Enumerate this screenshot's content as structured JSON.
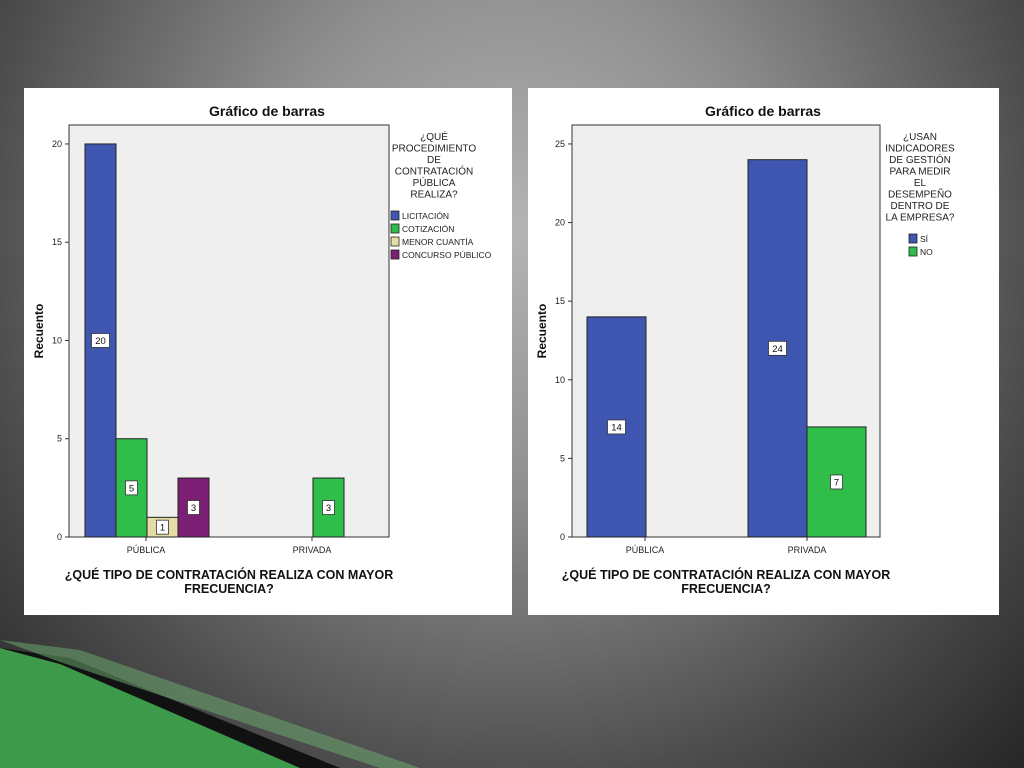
{
  "chart_data": [
    {
      "type": "bar",
      "title": "Gráfico de barras",
      "ylabel": "Recuento",
      "xlabel_lines": [
        "¿QUÉ TIPO DE CONTRATACIÓN REALIZA CON MAYOR",
        "FRECUENCIA?"
      ],
      "categories": [
        "PÚBLICA",
        "PRIVADA"
      ],
      "ylim": [
        0,
        20
      ],
      "yticks": [
        0,
        5,
        10,
        15,
        20
      ],
      "legend_title_lines": [
        "¿QUÉ",
        "PROCEDIMIENTO",
        "DE",
        "CONTRATACIÓN",
        "PÚBLICA",
        "REALIZA?"
      ],
      "legend_position": "right",
      "series": [
        {
          "name": "LICITACIÓN",
          "color": "#3f56b0",
          "values": [
            20,
            null
          ]
        },
        {
          "name": "COTIZACIÓN",
          "color": "#2fbe4a",
          "values": [
            5,
            3
          ]
        },
        {
          "name": "MENOR CUANTÍA",
          "color": "#e6dca6",
          "values": [
            1,
            null
          ]
        },
        {
          "name": "CONCURSO PÚBLICO",
          "color": "#7a1f74",
          "values": [
            3,
            null
          ]
        }
      ]
    },
    {
      "type": "bar",
      "title": "Gráfico de barras",
      "ylabel": "Recuento",
      "xlabel_lines": [
        "¿QUÉ TIPO DE CONTRATACIÓN REALIZA CON MAYOR",
        "FRECUENCIA?"
      ],
      "categories": [
        "PÚBLICA",
        "PRIVADA"
      ],
      "ylim": [
        0,
        25
      ],
      "yticks": [
        0,
        5,
        10,
        15,
        20,
        25
      ],
      "legend_title_lines": [
        "¿USAN",
        "INDICADORES",
        "DE GESTIÓN",
        "PARA MEDIR",
        "EL",
        "DESEMPEÑO",
        "DENTRO DE",
        "LA EMPRESA?"
      ],
      "legend_position": "right",
      "series": [
        {
          "name": "SÍ",
          "color": "#3f56b0",
          "values": [
            14,
            24
          ]
        },
        {
          "name": "NO",
          "color": "#2fbe4a",
          "values": [
            null,
            7
          ]
        }
      ]
    }
  ],
  "colors": {
    "plot_background": "#efefef",
    "decoration_green": "#3c9a4a",
    "decoration_dark": "#111111"
  }
}
